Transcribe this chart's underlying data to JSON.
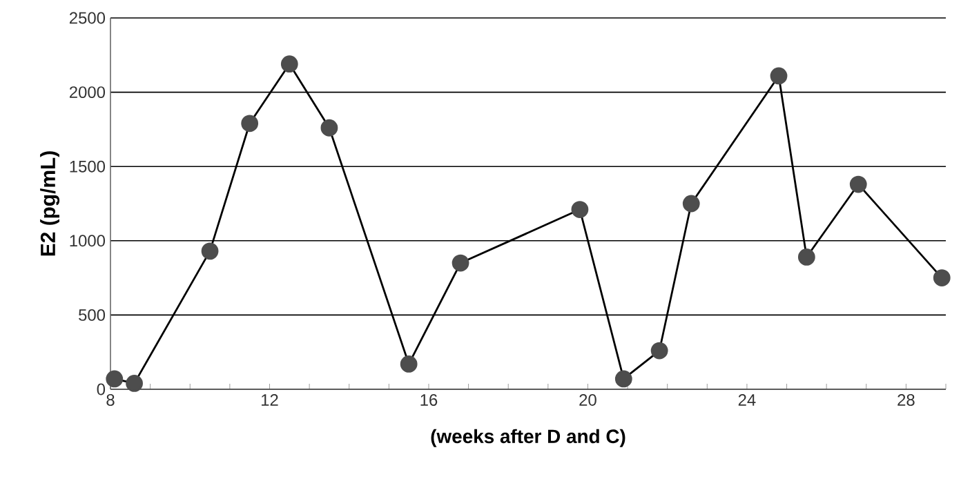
{
  "chart_data": {
    "type": "line",
    "xlabel": "(weeks after D and C)",
    "ylabel": "E2 (pg/mL)",
    "x": [
      8.1,
      8.6,
      10.5,
      11.5,
      12.5,
      13.5,
      15.5,
      16.8,
      19.8,
      20.9,
      21.8,
      22.6,
      24.8,
      25.5,
      26.8,
      28.9
    ],
    "series": [
      {
        "color": "#4d4d4d",
        "values": [
          70,
          40,
          930,
          1790,
          2190,
          1760,
          170,
          850,
          1210,
          70,
          260,
          1250,
          2110,
          890,
          1380,
          750
        ]
      }
    ],
    "xlim": [
      8,
      29
    ],
    "xticks": [
      8,
      {
        "value": 9,
        "label": null
      },
      {
        "value": 10,
        "label": null
      },
      {
        "value": 11,
        "label": null
      },
      12,
      {
        "value": 13,
        "label": null
      },
      {
        "value": 14,
        "label": null
      },
      {
        "value": 15,
        "label": null
      },
      16,
      {
        "value": 17,
        "label": null
      },
      {
        "value": 18,
        "label": null
      },
      {
        "value": 19,
        "label": null
      },
      20,
      {
        "value": 21,
        "label": null
      },
      {
        "value": 22,
        "label": null
      },
      {
        "value": 23,
        "label": null
      },
      24,
      {
        "value": 25,
        "label": null
      },
      {
        "value": 26,
        "label": null
      },
      {
        "value": 27,
        "label": null
      },
      28,
      {
        "value": 29,
        "label": null
      }
    ],
    "ylim": [
      0,
      2500
    ],
    "yticks": [
      0,
      500,
      1000,
      1500,
      2000,
      2500
    ],
    "grid": "y",
    "marker": "circle",
    "line_style": "solid"
  }
}
